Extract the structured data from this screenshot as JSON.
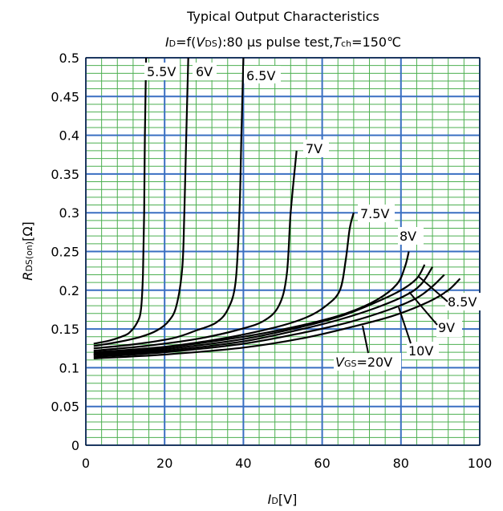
{
  "chart_data": {
    "type": "line",
    "title": "Typical Output Characteristics",
    "subtitle_parts": {
      "i": "I",
      "d": "D",
      "eq": "=f(",
      "v": "V",
      "ds": "DS",
      "mid": "):80 μs pulse test,",
      "t": "T",
      "ch": "ch",
      "end": "=150℃"
    },
    "xlabel_parts": {
      "main": "I",
      "sub": "D",
      "unit": "[V]"
    },
    "ylabel_parts": {
      "main": "R",
      "sub": "DS(on)",
      "unit": "[Ω]"
    },
    "xlim": [
      0,
      100
    ],
    "ylim": [
      0,
      0.5
    ],
    "x_ticks": [
      "0",
      "20",
      "40",
      "60",
      "80",
      "100"
    ],
    "y_ticks": [
      "0",
      "0.05",
      "0.1",
      "0.15",
      "0.2",
      "0.25",
      "0.3",
      "0.35",
      "0.4",
      "0.45",
      "0.5"
    ],
    "grid": {
      "major": true,
      "minor": true,
      "major_color": "#3a6fc2",
      "minor_color": "#4caf50"
    },
    "series_color": "#000000",
    "series": [
      {
        "name": "5.5V",
        "points": [
          [
            2,
            0.131
          ],
          [
            6,
            0.135
          ],
          [
            9,
            0.14
          ],
          [
            11,
            0.145
          ],
          [
            13,
            0.158
          ],
          [
            14,
            0.175
          ],
          [
            14.5,
            0.22
          ],
          [
            14.8,
            0.3
          ],
          [
            15,
            0.4
          ],
          [
            15.3,
            0.5
          ]
        ]
      },
      {
        "name": "6V",
        "points": [
          [
            2,
            0.128
          ],
          [
            8,
            0.133
          ],
          [
            14,
            0.14
          ],
          [
            18,
            0.148
          ],
          [
            21,
            0.16
          ],
          [
            23,
            0.18
          ],
          [
            24.5,
            0.23
          ],
          [
            25,
            0.3
          ],
          [
            25.5,
            0.4
          ],
          [
            26,
            0.5
          ]
        ]
      },
      {
        "name": "6.5V",
        "points": [
          [
            2,
            0.125
          ],
          [
            12,
            0.13
          ],
          [
            22,
            0.138
          ],
          [
            28,
            0.148
          ],
          [
            33,
            0.158
          ],
          [
            36,
            0.175
          ],
          [
            38,
            0.21
          ],
          [
            39,
            0.3
          ],
          [
            39.5,
            0.4
          ],
          [
            40,
            0.5
          ]
        ]
      },
      {
        "name": "7V",
        "points": [
          [
            2,
            0.122
          ],
          [
            15,
            0.128
          ],
          [
            28,
            0.137
          ],
          [
            38,
            0.148
          ],
          [
            45,
            0.16
          ],
          [
            49,
            0.18
          ],
          [
            51,
            0.22
          ],
          [
            52,
            0.3
          ],
          [
            53.5,
            0.38
          ]
        ]
      },
      {
        "name": "7.5V",
        "points": [
          [
            2,
            0.12
          ],
          [
            20,
            0.127
          ],
          [
            35,
            0.138
          ],
          [
            48,
            0.152
          ],
          [
            56,
            0.165
          ],
          [
            61,
            0.18
          ],
          [
            64.5,
            0.2
          ],
          [
            66,
            0.24
          ],
          [
            67,
            0.28
          ],
          [
            68,
            0.3
          ]
        ]
      },
      {
        "name": "8V",
        "points": [
          [
            2,
            0.118
          ],
          [
            20,
            0.126
          ],
          [
            40,
            0.14
          ],
          [
            55,
            0.155
          ],
          [
            66,
            0.17
          ],
          [
            74,
            0.188
          ],
          [
            79,
            0.208
          ],
          [
            81,
            0.23
          ],
          [
            82,
            0.25
          ]
        ]
      },
      {
        "name": "8.5V",
        "points": [
          [
            2,
            0.117
          ],
          [
            20,
            0.124
          ],
          [
            40,
            0.137
          ],
          [
            55,
            0.153
          ],
          [
            65,
            0.167
          ],
          [
            73,
            0.183
          ],
          [
            80,
            0.2
          ],
          [
            84,
            0.215
          ],
          [
            86,
            0.233
          ]
        ]
      },
      {
        "name": "9V",
        "points": [
          [
            2,
            0.116
          ],
          [
            20,
            0.122
          ],
          [
            40,
            0.134
          ],
          [
            55,
            0.15
          ],
          [
            65,
            0.163
          ],
          [
            74,
            0.178
          ],
          [
            81,
            0.193
          ],
          [
            85,
            0.207
          ],
          [
            88,
            0.23
          ]
        ]
      },
      {
        "name": "10V",
        "points": [
          [
            2,
            0.114
          ],
          [
            20,
            0.12
          ],
          [
            40,
            0.131
          ],
          [
            55,
            0.145
          ],
          [
            67,
            0.159
          ],
          [
            77,
            0.175
          ],
          [
            84,
            0.19
          ],
          [
            88,
            0.205
          ],
          [
            91,
            0.22
          ]
        ]
      },
      {
        "name": "VGS=20V",
        "points": [
          [
            2,
            0.112
          ],
          [
            20,
            0.117
          ],
          [
            40,
            0.126
          ],
          [
            55,
            0.138
          ],
          [
            67,
            0.152
          ],
          [
            78,
            0.167
          ],
          [
            87,
            0.185
          ],
          [
            92,
            0.2
          ],
          [
            95,
            0.215
          ]
        ]
      }
    ],
    "annotations": [
      {
        "text": "5.5V"
      },
      {
        "text": "6V"
      },
      {
        "text": "6.5V"
      },
      {
        "text": "7V"
      },
      {
        "text": "7.5V"
      },
      {
        "text": "8V"
      },
      {
        "text": "8.5V"
      },
      {
        "text": "9V"
      },
      {
        "text": "10V"
      },
      {
        "prefix": "V",
        "sub": "GS",
        "text": "=20V"
      }
    ]
  }
}
